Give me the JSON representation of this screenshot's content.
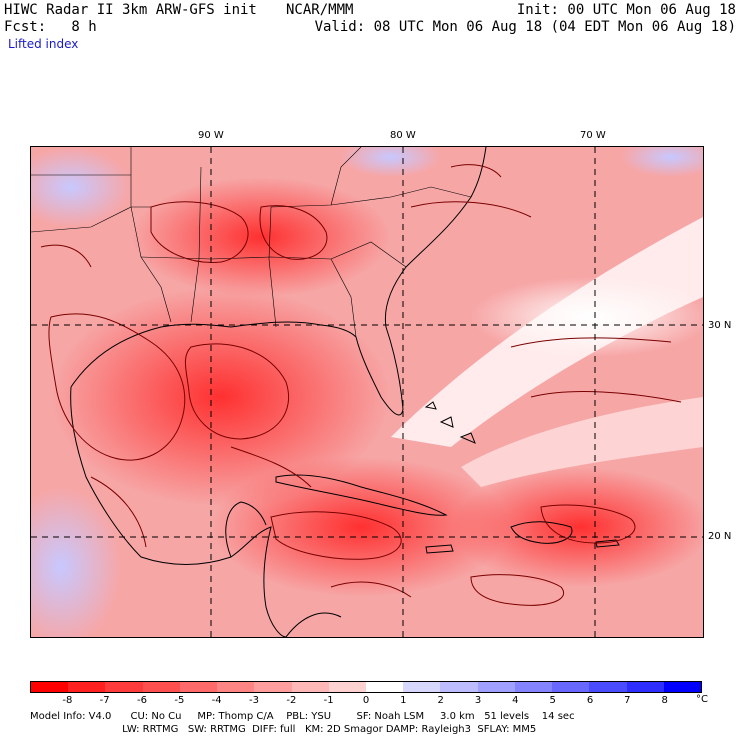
{
  "header": {
    "title": "HIWC Radar II 3km ARW-GFS init",
    "org": "NCAR/MMM",
    "init": "Init: 00 UTC Mon 06 Aug 18",
    "fcst": "Fcst:   8 h",
    "valid": "Valid: 08 UTC Mon 06 Aug 18 (04 EDT Mon 06 Aug 18)",
    "field": "Lifted index"
  },
  "map": {
    "lon_labels": [
      "90 W",
      "80 W",
      "70 W"
    ],
    "lat_labels": [
      "30 N",
      "20 N"
    ]
  },
  "colorbar": {
    "labels": [
      "-8",
      "-7",
      "-6",
      "-5",
      "-4",
      "-3",
      "-2",
      "-1",
      "0",
      "1",
      "2",
      "3",
      "4",
      "5",
      "6",
      "7",
      "8"
    ],
    "unit": "°C",
    "colors": [
      "#ff0000",
      "#ff2020",
      "#ff3c3c",
      "#ff5050",
      "#ff6a6a",
      "#ff8484",
      "#ff9e9e",
      "#ffb8b8",
      "#ffd2d2",
      "#ffffff",
      "#d8d8ff",
      "#bcbcff",
      "#a0a0ff",
      "#8484ff",
      "#6868ff",
      "#4c4cff",
      "#2e2eff",
      "#0000ff"
    ]
  },
  "model_info": {
    "line1": "Model Info: V4.0      CU: No Cu     MP: Thomp C/A    PBL: YSU        SF: Noah LSM     3.0 km   51 levels    14 sec",
    "line2": "                             LW: RRTMG   SW: RRTMG  DIFF: full   KM: 2D Smagor DAMP: Rayleigh3  SFLAY: MM5"
  }
}
